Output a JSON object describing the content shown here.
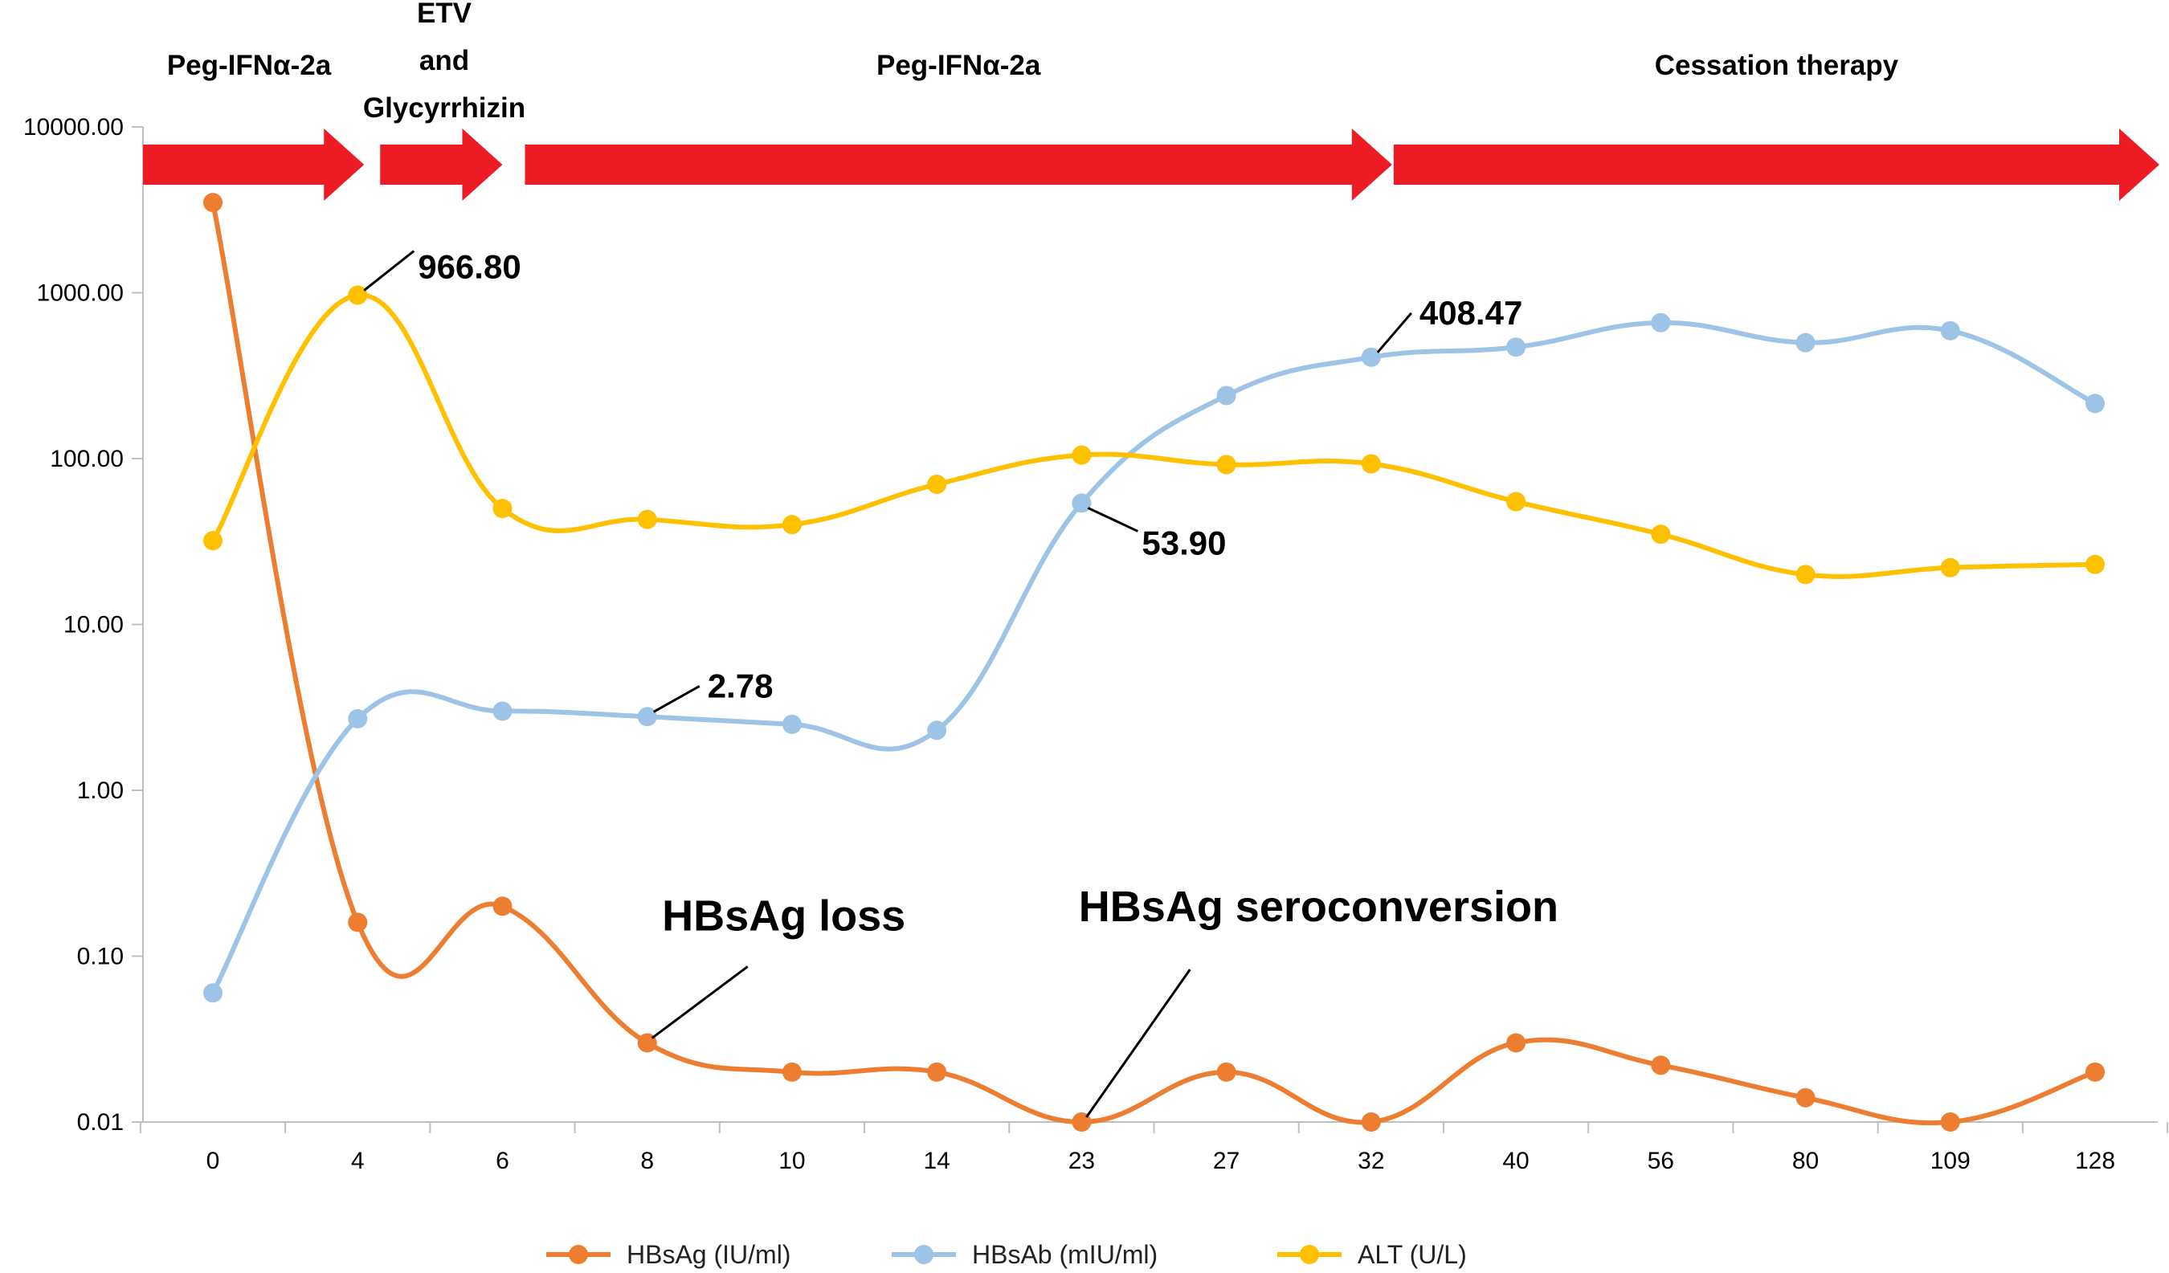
{
  "chart_data": {
    "type": "line",
    "yscale": "log",
    "ylim": [
      0.01,
      10000
    ],
    "y_ticks": [
      "10000.00",
      "1000.00",
      "100.00",
      "10.00",
      "1.00",
      "0.10",
      "0.01"
    ],
    "categories": [
      "0",
      "4",
      "6",
      "8",
      "10",
      "14",
      "23",
      "27",
      "32",
      "40",
      "56",
      "80",
      "109",
      "128"
    ],
    "xlabel": "",
    "ylabel": "",
    "grid": false,
    "legend_position": "bottom",
    "series": [
      {
        "name": "HBsAg (IU/ml)",
        "color": "#ed7d31",
        "values": [
          3500,
          0.16,
          0.2,
          0.03,
          0.02,
          0.02,
          0.01,
          0.02,
          0.01,
          0.03,
          0.022,
          0.014,
          0.01,
          0.02
        ]
      },
      {
        "name": "HBsAb (mIU/ml)",
        "color": "#9dc3e6",
        "values": [
          0.06,
          2.7,
          3.0,
          2.78,
          2.5,
          2.3,
          53.9,
          240,
          408.47,
          470,
          660,
          500,
          590,
          215
        ]
      },
      {
        "name": "ALT (U/L)",
        "color": "#ffc000",
        "values": [
          32,
          966.8,
          50,
          43,
          40,
          70,
          105,
          92,
          93,
          55,
          35,
          20,
          22,
          23
        ]
      }
    ],
    "phases": [
      {
        "label": "Peg-IFNα-2a",
        "from": "0",
        "to": "4"
      },
      {
        "label": "ETV and Glycyrrhizin",
        "label_lines": [
          "ETV",
          "and",
          "Glycyrrhizin"
        ],
        "from": "4",
        "to": "6"
      },
      {
        "label": "Peg-IFNα-2a",
        "from": "6",
        "to": "32"
      },
      {
        "label": "Cessation therapy",
        "from": "32",
        "to": "128"
      }
    ],
    "value_annotations": [
      {
        "text": "966.80",
        "series": "ALT (U/L)",
        "category": "4"
      },
      {
        "text": "408.47",
        "series": "HBsAb (mIU/ml)",
        "category": "32"
      },
      {
        "text": "53.90",
        "series": "HBsAb (mIU/ml)",
        "category": "23"
      },
      {
        "text": "2.78",
        "series": "HBsAb (mIU/ml)",
        "category": "8"
      }
    ],
    "event_annotations": [
      {
        "text": "HBsAg loss",
        "series": "HBsAg (IU/ml)",
        "category": "8"
      },
      {
        "text": "HBsAg seroconversion",
        "series": "HBsAg (IU/ml)",
        "category": "23"
      }
    ],
    "arrow_color": "#ed1c24"
  }
}
